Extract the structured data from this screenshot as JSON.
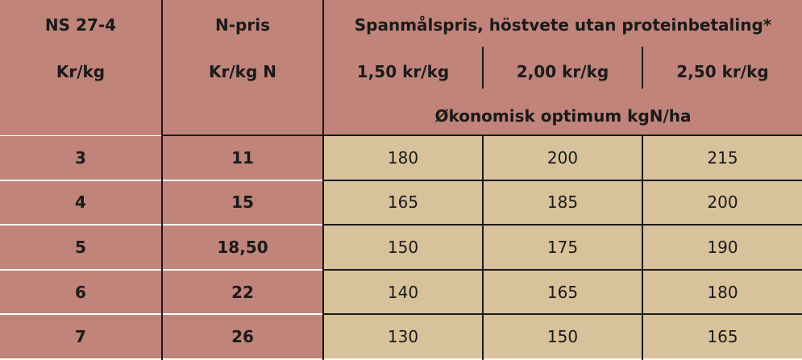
{
  "header": {
    "col1_line1": "NS 27-4",
    "col1_line2": "Kr/kg",
    "col2_line1": "N-pris",
    "col2_line2": "Kr/kg N",
    "group_title": "Spanmålspris, höstvete utan proteinbetaling*",
    "price_1": "1,50 kr/kg",
    "price_2": "2,00 kr/kg",
    "price_3": "2,50 kr/kg",
    "optimum_label": "Økonomisk optimum kgN/ha"
  },
  "rows": [
    {
      "ns": "3",
      "npris": "11",
      "v1": "180",
      "v2": "200",
      "v3": "215"
    },
    {
      "ns": "4",
      "npris": "15",
      "v1": "165",
      "v2": "185",
      "v3": "200"
    },
    {
      "ns": "5",
      "npris": "18,50",
      "v1": "150",
      "v2": "175",
      "v3": "190"
    },
    {
      "ns": "6",
      "npris": "22",
      "v1": "140",
      "v2": "165",
      "v3": "180"
    },
    {
      "ns": "7",
      "npris": "26",
      "v1": "130",
      "v2": "150",
      "v3": "165"
    }
  ],
  "colors": {
    "header_fill": "#c0847a",
    "value_fill": "#d8c29b",
    "rule": "#1a1a1a"
  }
}
